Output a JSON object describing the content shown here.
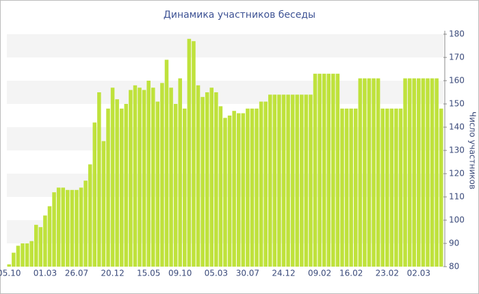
{
  "chart_data": {
    "type": "bar",
    "title": "Динамика участников беседы",
    "y_label": "Число участников",
    "categories": [
      "05.10",
      null,
      null,
      null,
      null,
      null,
      null,
      null,
      "01.03",
      null,
      null,
      null,
      null,
      null,
      null,
      "26.07",
      null,
      null,
      null,
      null,
      null,
      null,
      null,
      "20.12",
      null,
      null,
      null,
      null,
      null,
      null,
      null,
      "15.05",
      null,
      null,
      null,
      null,
      null,
      null,
      "09.10",
      null,
      null,
      null,
      null,
      null,
      null,
      null,
      "05.03",
      null,
      null,
      null,
      null,
      null,
      null,
      "30.07",
      null,
      null,
      null,
      null,
      null,
      null,
      null,
      "24.12",
      null,
      null,
      null,
      null,
      null,
      null,
      null,
      "09.02",
      null,
      null,
      null,
      null,
      null,
      null,
      "16.02",
      null,
      null,
      null,
      null,
      null,
      null,
      null,
      "23.02",
      null,
      null,
      null,
      null,
      null,
      null,
      "02.03",
      null,
      null,
      null,
      null,
      null
    ],
    "values": [
      81,
      86,
      89,
      90,
      90,
      91,
      98,
      97,
      102,
      106,
      112,
      114,
      114,
      113,
      113,
      113,
      114,
      117,
      124,
      142,
      155,
      134,
      148,
      157,
      152,
      148,
      150,
      156,
      158,
      157,
      156,
      160,
      157,
      151,
      159,
      169,
      157,
      150,
      161,
      148,
      178,
      177,
      158,
      153,
      155,
      157,
      155,
      149,
      144,
      145,
      147,
      146,
      146,
      148,
      148,
      148,
      151,
      151,
      154,
      154,
      154,
      154,
      154,
      154,
      154,
      154,
      154,
      154,
      163,
      163,
      163,
      163,
      163,
      163,
      148,
      148,
      148,
      148,
      161,
      161,
      161,
      161,
      161,
      148,
      148,
      148,
      148,
      148,
      161,
      161,
      161,
      161,
      161,
      161,
      161,
      161,
      148
    ],
    "color": "#bfe23c",
    "ylim": [
      80,
      180
    ],
    "yticks": [
      80,
      90,
      100,
      110,
      120,
      130,
      140,
      150,
      160,
      170,
      180
    ],
    "grid": true
  }
}
